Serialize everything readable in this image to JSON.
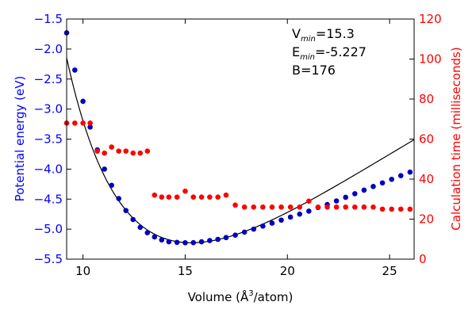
{
  "chart_data": {
    "type": "scatter",
    "xlabel_main": "Volume (Å",
    "xlabel_sup": "3",
    "xlabel_tail": "/atom)",
    "ylabel_left": "Potential energy (eV)",
    "ylabel_right": "Calculation time (milliseconds)",
    "xlim": [
      9.2,
      26.2
    ],
    "ylim_left": [
      -5.5,
      -1.5
    ],
    "ylim_right": [
      0,
      120
    ],
    "x_ticks": [
      10,
      15,
      20,
      25
    ],
    "x_tick_labels": [
      "10",
      "15",
      "20",
      "25"
    ],
    "y_left_ticks": [
      -5.5,
      -5.0,
      -4.5,
      -4.0,
      -3.5,
      -3.0,
      -2.5,
      -2.0,
      -1.5
    ],
    "y_left_tick_labels": [
      "−5.5",
      "−5.0",
      "−4.5",
      "−4.0",
      "−3.5",
      "−3.0",
      "−2.5",
      "−2.0",
      "−1.5"
    ],
    "y_right_ticks": [
      0,
      20,
      40,
      60,
      80,
      100,
      120
    ],
    "y_right_tick_labels": [
      "0",
      "20",
      "40",
      "60",
      "80",
      "100",
      "120"
    ],
    "colors": {
      "left_axis": "#0000ff",
      "right_axis": "#ff0000",
      "energy_points": "#0000bf",
      "time_points": "#ff0000",
      "fit_line": "#000000"
    },
    "annotations": {
      "vmin_label": "V",
      "vmin_sub": "min",
      "vmin_value": "=15.3",
      "emin_label": "E",
      "emin_sub": "min",
      "emin_value": "=-5.227",
      "b_text": "B=176"
    },
    "fit": {
      "V0": 15.3,
      "E0": -5.227,
      "B": 176
    },
    "series": [
      {
        "name": "Potential energy",
        "axis": "left",
        "x": [
          9.2,
          9.6,
          10.0,
          10.35,
          10.7,
          11.05,
          11.4,
          11.75,
          12.1,
          12.45,
          12.8,
          13.15,
          13.5,
          13.85,
          14.2,
          14.6,
          15.0,
          15.4,
          15.8,
          16.2,
          16.6,
          17.0,
          17.45,
          17.9,
          18.35,
          18.8,
          19.25,
          19.7,
          20.15,
          20.6,
          21.05,
          21.5,
          21.95,
          22.4,
          22.85,
          23.3,
          23.75,
          24.2,
          24.65,
          25.1,
          25.55,
          26.0
        ],
        "y": [
          -1.73,
          -2.35,
          -2.87,
          -3.3,
          -3.68,
          -4.0,
          -4.27,
          -4.49,
          -4.69,
          -4.84,
          -4.97,
          -5.06,
          -5.13,
          -5.18,
          -5.21,
          -5.22,
          -5.227,
          -5.225,
          -5.21,
          -5.19,
          -5.17,
          -5.14,
          -5.1,
          -5.05,
          -5.0,
          -4.95,
          -4.9,
          -4.85,
          -4.8,
          -4.75,
          -4.7,
          -4.64,
          -4.59,
          -4.53,
          -4.47,
          -4.41,
          -4.35,
          -4.29,
          -4.23,
          -4.17,
          -4.11,
          -4.05
        ]
      },
      {
        "name": "Calculation time",
        "axis": "right",
        "x": [
          9.2,
          9.6,
          10.0,
          10.35,
          10.7,
          11.05,
          11.4,
          11.75,
          12.1,
          12.45,
          12.8,
          13.15,
          13.5,
          13.85,
          14.2,
          14.6,
          15.0,
          15.4,
          15.8,
          16.2,
          16.6,
          17.0,
          17.45,
          17.9,
          18.35,
          18.8,
          19.25,
          19.7,
          20.15,
          20.6,
          21.05,
          21.5,
          21.95,
          22.4,
          22.85,
          23.3,
          23.75,
          24.2,
          24.65,
          25.1,
          25.55,
          26.0
        ],
        "y": [
          68,
          68,
          68,
          68,
          54,
          53,
          56,
          54,
          54,
          53,
          53,
          54,
          32,
          31,
          31,
          31,
          34,
          31,
          31,
          31,
          31,
          32,
          27,
          26,
          26,
          26,
          26,
          26,
          26,
          26,
          29,
          26,
          26,
          26,
          26,
          26,
          26,
          26,
          25,
          25,
          25,
          25
        ]
      }
    ]
  }
}
